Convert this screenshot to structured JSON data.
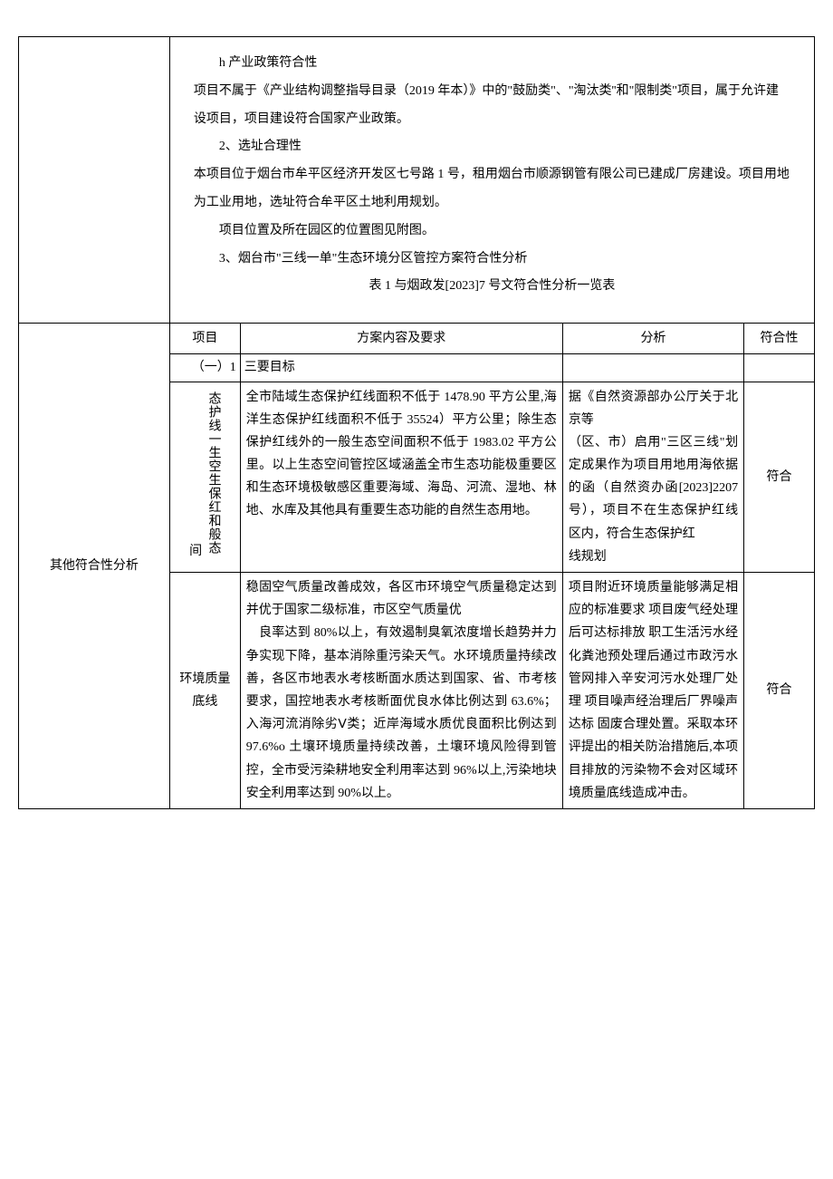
{
  "narrative": {
    "p1": "h 产业政策符合性",
    "p2": "项目不属于《产业结构调整指导目录（2019 年本）》中的\"鼓励类\"、\"淘汰类''和\"限制类\"项目，属于允许建设项目，项目建设符合国家产业政策。",
    "p3": "2、选址合理性",
    "p4": "本项目位于烟台市牟平区经济开发区七号路 1 号，租用烟台市顺源钢管有限公司已建成厂房建设。项目用地为工业用地，选址符合牟平区土地利用规划。",
    "p5": "项目位置及所在园区的位置图见附图。",
    "p6": "3、烟台市\"三线一单\"生态环境分区管控方案符合性分析",
    "p7": "表 1 与烟政发[2023]7 号文符合性分析一览表"
  },
  "headers": {
    "left_label": "其他符合性分析",
    "item": "项目",
    "req": "方案内容及要求",
    "ana": "分析",
    "fit": "符合性"
  },
  "section_row": {
    "label": "（一）1",
    "title": "三要目标"
  },
  "row1": {
    "item_prefix": "间",
    "item_vertical": "态护线一生空生保红和般态",
    "req": "全市陆域生态保护红线面积不低于 1478.90 平方公里,海洋生态保护红线面积不低于 35524）平方公里；除生态保护红线外的一般生态空间面积不低于 1983.02 平方公里。以上生态空间管控区域涵盖全市生态功能极重要区和生态环境极敏感区重要海域、海岛、河流、湿地、林地、水库及其他具有重要生态功能的自然生态用地。",
    "ana": "据《自然资源部办公厅关于北京等\n（区、市）启用\"三区三线\"划定成果作为项目用地用海依据的函（自然资办函[2023]2207 号），项目不在生态保护红线区内，符合生态保护红\n线规划",
    "fit": "符合"
  },
  "row2": {
    "item": "环境质量底线",
    "req": "稳固空气质量改善成效，各区市环境空气质量稳定达到并优于国家二级标准，市区空气质量优\n　良率达到 80%以上，有效遏制臭氧浓度增长趋势并力争实现下降，基本消除重污染天气。水环境质量持续改善，各区市地表水考核断面水质达到国家、省、市考核要求，国控地表水考核断面优良水体比例达到 63.6%；入海河流消除劣Ⅴ类；近岸海域水质优良面积比例达到 97.6%o 土壤环境质量持续改善，土壤环境风险得到管控，全市受污染耕地安全利用率达到 96%以上,污染地块安全利用率达到 90%以上。",
    "ana": "项目附近环境质量能够满足相应的标准要求 项目废气经处理后可达标排放 职工生活污水经化粪池预处理后通过市政污水管网排入辛安河污水处理厂处理 项目噪声经治理后厂界噪声达标 固废合理处置。采取本环评提出的相关防治措施后,本项目排放的污染物不会对区域环境质量底线造成冲击。",
    "fit": "符合"
  }
}
